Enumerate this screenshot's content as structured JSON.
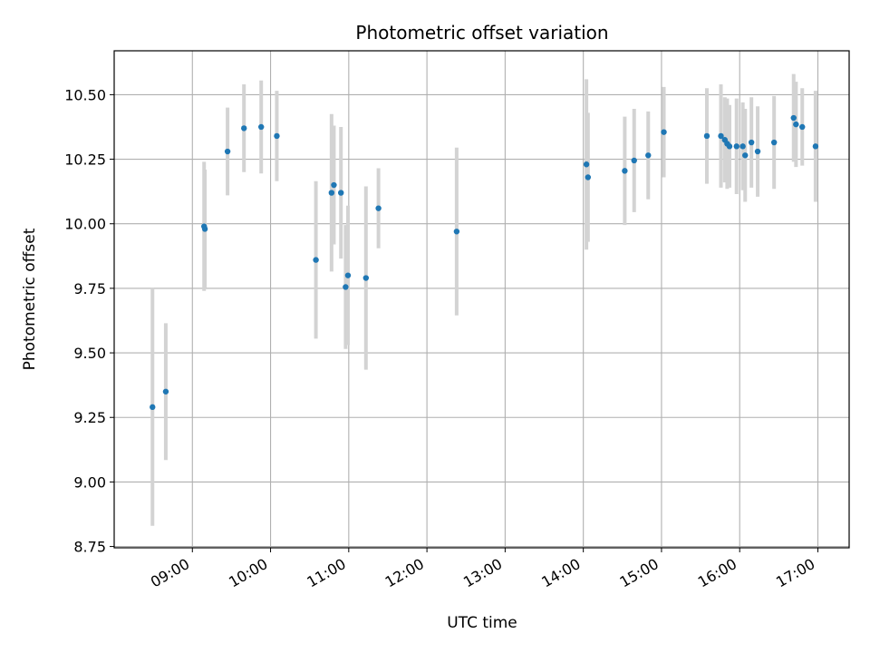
{
  "chart_data": {
    "type": "scatter",
    "title": "Photometric offset variation",
    "xlabel": "UTC time",
    "ylabel": "Photometric offset",
    "x_unit": "hours UTC",
    "xlim": [
      8.0,
      17.4
    ],
    "ylim": [
      8.745,
      10.67
    ],
    "x_ticks": [
      9,
      10,
      11,
      12,
      13,
      14,
      15,
      16,
      17
    ],
    "x_tick_labels": [
      "09:00",
      "10:00",
      "11:00",
      "12:00",
      "13:00",
      "14:00",
      "15:00",
      "16:00",
      "17:00"
    ],
    "y_ticks": [
      8.75,
      9.0,
      9.25,
      9.5,
      9.75,
      10.0,
      10.25,
      10.5
    ],
    "y_tick_labels": [
      "8.75",
      "9.00",
      "9.25",
      "9.50",
      "9.75",
      "10.00",
      "10.25",
      "10.50"
    ],
    "grid": true,
    "point_color": "#1f77b4",
    "errorbar_color": "#d3d3d3",
    "points": [
      {
        "x": 8.49,
        "y": 9.29,
        "err": 0.46
      },
      {
        "x": 8.66,
        "y": 9.35,
        "err": 0.265
      },
      {
        "x": 9.15,
        "y": 9.99,
        "err": 0.25
      },
      {
        "x": 9.16,
        "y": 9.98,
        "err": 0.23
      },
      {
        "x": 9.45,
        "y": 10.28,
        "err": 0.17
      },
      {
        "x": 9.66,
        "y": 10.37,
        "err": 0.17
      },
      {
        "x": 9.88,
        "y": 10.375,
        "err": 0.18
      },
      {
        "x": 10.08,
        "y": 10.34,
        "err": 0.175
      },
      {
        "x": 10.58,
        "y": 9.86,
        "err": 0.305
      },
      {
        "x": 10.78,
        "y": 10.12,
        "err": 0.305
      },
      {
        "x": 10.81,
        "y": 10.15,
        "err": 0.23
      },
      {
        "x": 10.9,
        "y": 10.12,
        "err": 0.255
      },
      {
        "x": 10.96,
        "y": 9.755,
        "err": 0.24
      },
      {
        "x": 10.99,
        "y": 9.8,
        "err": 0.27
      },
      {
        "x": 11.22,
        "y": 9.79,
        "err": 0.355
      },
      {
        "x": 11.38,
        "y": 10.06,
        "err": 0.155
      },
      {
        "x": 12.38,
        "y": 9.97,
        "err": 0.325
      },
      {
        "x": 14.04,
        "y": 10.23,
        "err": 0.33
      },
      {
        "x": 14.06,
        "y": 10.18,
        "err": 0.25
      },
      {
        "x": 14.53,
        "y": 10.205,
        "err": 0.21
      },
      {
        "x": 14.65,
        "y": 10.245,
        "err": 0.2
      },
      {
        "x": 14.83,
        "y": 10.265,
        "err": 0.17
      },
      {
        "x": 15.03,
        "y": 10.355,
        "err": 0.175
      },
      {
        "x": 15.58,
        "y": 10.34,
        "err": 0.185
      },
      {
        "x": 15.76,
        "y": 10.34,
        "err": 0.2
      },
      {
        "x": 15.81,
        "y": 10.325,
        "err": 0.165
      },
      {
        "x": 15.84,
        "y": 10.31,
        "err": 0.175
      },
      {
        "x": 15.87,
        "y": 10.3,
        "err": 0.16
      },
      {
        "x": 15.96,
        "y": 10.3,
        "err": 0.185
      },
      {
        "x": 16.04,
        "y": 10.3,
        "err": 0.17
      },
      {
        "x": 16.07,
        "y": 10.265,
        "err": 0.18
      },
      {
        "x": 16.15,
        "y": 10.315,
        "err": 0.175
      },
      {
        "x": 16.23,
        "y": 10.28,
        "err": 0.175
      },
      {
        "x": 16.44,
        "y": 10.315,
        "err": 0.18
      },
      {
        "x": 16.69,
        "y": 10.41,
        "err": 0.17
      },
      {
        "x": 16.72,
        "y": 10.385,
        "err": 0.165
      },
      {
        "x": 16.8,
        "y": 10.375,
        "err": 0.15
      },
      {
        "x": 16.97,
        "y": 10.3,
        "err": 0.215
      }
    ]
  }
}
